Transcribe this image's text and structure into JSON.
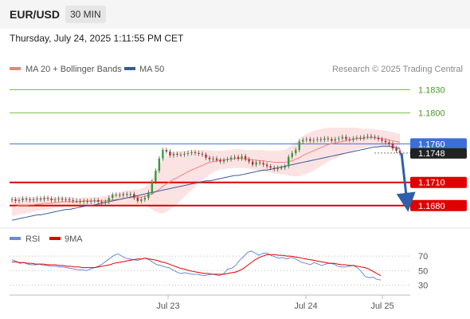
{
  "header": {
    "symbol": "EUR/USD",
    "timeframe": "30 MIN",
    "datetime": "Thursday, July 24, 2025 1:11:55 PM CET"
  },
  "legend": {
    "ma20_label": "MA 20 + Bollinger Bands",
    "ma50_label": "MA 50",
    "credit": "Research © 2025 Trading Central",
    "ma20_color": "#f08080",
    "ma50_color": "#3a5a9a"
  },
  "rsi_legend": {
    "rsi_label": "RSI",
    "ma_label": "9MA",
    "rsi_color": "#6a8ad8",
    "ma_color": "#e00000"
  },
  "chart_data": [
    {
      "type": "candlestick",
      "ylim": [
        1.1655,
        1.1845
      ],
      "x_ticks": [
        "Jul 23",
        "Jul 24",
        "Jul 25"
      ],
      "close": [
        1.1688,
        1.1686,
        1.1687,
        1.1689,
        1.1688,
        1.1687,
        1.1688,
        1.1689,
        1.1688,
        1.169,
        1.1689,
        1.1687,
        1.1688,
        1.1689,
        1.1688,
        1.1688,
        1.1687,
        1.1686,
        1.1686,
        1.1685,
        1.1686,
        1.1685,
        1.1686,
        1.1687,
        1.1685,
        1.1684,
        1.1685,
        1.169,
        1.1694,
        1.1694,
        1.1693,
        1.1695,
        1.1694,
        1.1695,
        1.169,
        1.1686,
        1.1688,
        1.169,
        1.1697,
        1.1711,
        1.1725,
        1.1741,
        1.1752,
        1.175,
        1.1745,
        1.1747,
        1.1746,
        1.1746,
        1.1747,
        1.1748,
        1.1749,
        1.1748,
        1.1747,
        1.1746,
        1.1742,
        1.174,
        1.1741,
        1.1739,
        1.1737,
        1.1739,
        1.174,
        1.1742,
        1.1743,
        1.1741,
        1.1744,
        1.174,
        1.1737,
        1.1733,
        1.1736,
        1.1735,
        1.1733,
        1.1731,
        1.1729,
        1.1727,
        1.1729,
        1.1729,
        1.1731,
        1.1743,
        1.1748,
        1.1752,
        1.1763,
        1.1765,
        1.1766,
        1.1764,
        1.1765,
        1.1766,
        1.1765,
        1.1767,
        1.1766,
        1.1764,
        1.1766,
        1.1767,
        1.1769,
        1.1766,
        1.1765,
        1.1767,
        1.1768,
        1.1767,
        1.1769,
        1.177,
        1.1769,
        1.1768,
        1.1766,
        1.1764,
        1.1762,
        1.176,
        1.1754,
        1.1751,
        1.1748
      ],
      "open": [
        1.1687,
        1.1688,
        1.1686,
        1.1687,
        1.1689,
        1.1688,
        1.1687,
        1.1688,
        1.1689,
        1.1688,
        1.169,
        1.1689,
        1.1687,
        1.1688,
        1.1689,
        1.1688,
        1.1688,
        1.1687,
        1.1686,
        1.1686,
        1.1685,
        1.1686,
        1.1685,
        1.1686,
        1.1687,
        1.1685,
        1.1684,
        1.1685,
        1.169,
        1.1694,
        1.1694,
        1.1693,
        1.1695,
        1.1694,
        1.1695,
        1.169,
        1.1686,
        1.1688,
        1.169,
        1.1697,
        1.1711,
        1.1725,
        1.1741,
        1.1752,
        1.175,
        1.1745,
        1.1747,
        1.1746,
        1.1746,
        1.1747,
        1.1748,
        1.1749,
        1.1748,
        1.1747,
        1.1746,
        1.1742,
        1.174,
        1.1741,
        1.1739,
        1.1737,
        1.1739,
        1.174,
        1.1742,
        1.1743,
        1.1741,
        1.1744,
        1.174,
        1.1737,
        1.1733,
        1.1736,
        1.1735,
        1.1733,
        1.1731,
        1.1729,
        1.1727,
        1.1729,
        1.1729,
        1.1731,
        1.1743,
        1.1748,
        1.1752,
        1.1763,
        1.1765,
        1.1766,
        1.1764,
        1.1765,
        1.1766,
        1.1765,
        1.1767,
        1.1766,
        1.1764,
        1.1766,
        1.1767,
        1.1769,
        1.1766,
        1.1765,
        1.1767,
        1.1768,
        1.1767,
        1.1769,
        1.177,
        1.1769,
        1.1768,
        1.1766,
        1.1764,
        1.1762,
        1.176,
        1.1754,
        1.1751
      ],
      "ma20": [
        1.1679,
        1.1679,
        1.168,
        1.168,
        1.168,
        1.1681,
        1.1681,
        1.1682,
        1.1682,
        1.1683,
        1.1683,
        1.1683,
        1.1684,
        1.1684,
        1.1685,
        1.1685,
        1.1685,
        1.1685,
        1.1685,
        1.1685,
        1.1686,
        1.1686,
        1.1686,
        1.1686,
        1.1686,
        1.1686,
        1.1686,
        1.1687,
        1.1687,
        1.1688,
        1.1688,
        1.1689,
        1.169,
        1.169,
        1.1691,
        1.1691,
        1.1691,
        1.1692,
        1.1693,
        1.1695,
        1.1698,
        1.1701,
        1.1705,
        1.1708,
        1.1711,
        1.1714,
        1.1716,
        1.1719,
        1.1721,
        1.1724,
        1.1726,
        1.1728,
        1.173,
        1.1732,
        1.1734,
        1.1736,
        1.1737,
        1.1738,
        1.1739,
        1.1739,
        1.174,
        1.174,
        1.1741,
        1.1741,
        1.1741,
        1.174,
        1.174,
        1.1739,
        1.1739,
        1.1738,
        1.1738,
        1.1737,
        1.1737,
        1.1736,
        1.1736,
        1.1736,
        1.1736,
        1.1737,
        1.1738,
        1.174,
        1.1742,
        1.1745,
        1.1747,
        1.1749,
        1.1751,
        1.1753,
        1.1755,
        1.1757,
        1.1759,
        1.176,
        1.1761,
        1.1762,
        1.1763,
        1.1764,
        1.1765,
        1.1766,
        1.1767,
        1.1767,
        1.1767,
        1.1768,
        1.1768,
        1.1768,
        1.1767,
        1.1767,
        1.1766,
        1.1765,
        1.1764,
        1.1763,
        1.1762
      ],
      "band_width": [
        0.0012,
        0.0012,
        0.0011,
        0.0011,
        0.001,
        0.001,
        0.0009,
        0.0009,
        0.0008,
        0.0008,
        0.0008,
        0.0007,
        0.0007,
        0.0007,
        0.0006,
        0.0006,
        0.0006,
        0.0006,
        0.0005,
        0.0005,
        0.0005,
        0.0005,
        0.0005,
        0.0005,
        0.0005,
        0.0006,
        0.0006,
        0.0007,
        0.0008,
        0.0008,
        0.0009,
        0.0009,
        0.001,
        0.001,
        0.001,
        0.001,
        0.0011,
        0.0012,
        0.0015,
        0.002,
        0.0026,
        0.0031,
        0.0035,
        0.0036,
        0.0036,
        0.0035,
        0.0034,
        0.0032,
        0.003,
        0.0028,
        0.0026,
        0.0024,
        0.0022,
        0.002,
        0.0018,
        0.0016,
        0.0014,
        0.0013,
        0.0012,
        0.0012,
        0.0012,
        0.0012,
        0.0012,
        0.0012,
        0.0012,
        0.0012,
        0.0012,
        0.0013,
        0.0013,
        0.0014,
        0.0014,
        0.0014,
        0.0014,
        0.0015,
        0.0015,
        0.0016,
        0.0016,
        0.0018,
        0.002,
        0.0022,
        0.0024,
        0.0025,
        0.0026,
        0.0026,
        0.0026,
        0.0025,
        0.0024,
        0.0023,
        0.0022,
        0.0021,
        0.002,
        0.0019,
        0.0018,
        0.0017,
        0.0016,
        0.0015,
        0.0014,
        0.0013,
        0.0012,
        0.0012,
        0.0011,
        0.0011,
        0.0011,
        0.0011,
        0.0011,
        0.0011,
        0.0011,
        0.0011,
        0.0011,
        0.0011,
        0.0011
      ],
      "ma50": [
        1.1661,
        1.1662,
        1.1663,
        1.1664,
        1.1665,
        1.1666,
        1.1667,
        1.1668,
        1.1668,
        1.1669,
        1.167,
        1.1671,
        1.1672,
        1.1673,
        1.1674,
        1.1675,
        1.1675,
        1.1676,
        1.1677,
        1.1678,
        1.1679,
        1.168,
        1.168,
        1.1681,
        1.1682,
        1.1683,
        1.1684,
        1.1685,
        1.1686,
        1.1687,
        1.1688,
        1.1689,
        1.169,
        1.1691,
        1.1692,
        1.1693,
        1.1694,
        1.1695,
        1.1696,
        1.1697,
        1.1698,
        1.1699,
        1.17,
        1.1701,
        1.1702,
        1.1703,
        1.1704,
        1.1705,
        1.1706,
        1.1707,
        1.1708,
        1.1709,
        1.171,
        1.1711,
        1.1712,
        1.1712,
        1.1713,
        1.1714,
        1.1715,
        1.1716,
        1.1717,
        1.1718,
        1.1719,
        1.1719,
        1.172,
        1.1721,
        1.1722,
        1.1723,
        1.1724,
        1.1725,
        1.1726,
        1.1726,
        1.1727,
        1.1728,
        1.1729,
        1.173,
        1.1731,
        1.1732,
        1.1733,
        1.1734,
        1.1735,
        1.1736,
        1.1737,
        1.1738,
        1.1739,
        1.174,
        1.1741,
        1.1742,
        1.1743,
        1.1744,
        1.1745,
        1.1746,
        1.1747,
        1.1748,
        1.1749,
        1.175,
        1.1751,
        1.1752,
        1.1753,
        1.1754,
        1.1755,
        1.1756,
        1.1756,
        1.1757,
        1.1757,
        1.1757,
        1.1756,
        1.1755,
        1.1754
      ],
      "horizontal_levels": [
        {
          "value": 1.183,
          "label": "1.1830",
          "kind": "target"
        },
        {
          "value": 1.18,
          "label": "1.1800",
          "kind": "target"
        },
        {
          "value": 1.176,
          "label": "1.1760",
          "kind": "pivot"
        },
        {
          "value": 1.1748,
          "label": "1.1748",
          "kind": "last"
        },
        {
          "value": 1.171,
          "label": "1.1710",
          "kind": "support"
        },
        {
          "value": 1.168,
          "label": "1.1680",
          "kind": "support"
        }
      ],
      "arrow": {
        "from": 1.1748,
        "to": 1.168,
        "direction": "down"
      }
    },
    {
      "type": "line",
      "title": "RSI",
      "ylim": [
        25,
        80
      ],
      "y_ticks": [
        70,
        50,
        30
      ],
      "rsi": [
        65,
        63,
        60,
        61,
        59,
        58,
        58,
        59,
        57,
        57,
        56,
        56,
        55,
        55,
        54,
        53,
        52,
        51,
        51,
        50,
        52,
        54,
        56,
        59,
        63,
        67,
        71,
        73,
        70,
        67,
        66,
        65,
        64,
        66,
        67,
        65,
        61,
        58,
        57,
        55,
        54,
        51,
        48,
        46,
        47,
        46,
        45,
        45,
        44,
        43,
        44,
        45,
        44,
        43,
        46,
        52,
        53,
        57,
        64,
        69,
        75,
        77,
        74,
        71,
        74,
        74,
        71,
        69,
        67,
        68,
        66,
        68,
        67,
        64,
        61,
        60,
        58,
        61,
        59,
        57,
        59,
        60,
        59,
        56,
        55,
        55,
        56,
        57,
        54,
        49,
        42,
        40,
        41,
        38,
        37
      ],
      "ma9": [
        62,
        62,
        61,
        61,
        60,
        60,
        59,
        59,
        59,
        58,
        58,
        58,
        57,
        57,
        56,
        56,
        55,
        55,
        54,
        54,
        54,
        54,
        55,
        56,
        57,
        58,
        60,
        61,
        62,
        63,
        64,
        65,
        66,
        66,
        67,
        66,
        65,
        64,
        62,
        61,
        59,
        57,
        55,
        53,
        52,
        50,
        49,
        48,
        47,
        46,
        46,
        45,
        45,
        45,
        45,
        46,
        47,
        48,
        50,
        53,
        57,
        61,
        65,
        68,
        70,
        72,
        72,
        72,
        71,
        71,
        70,
        70,
        69,
        68,
        67,
        66,
        65,
        64,
        63,
        62,
        61,
        60,
        60,
        59,
        58,
        58,
        57,
        57,
        56,
        55,
        54,
        52,
        49,
        46,
        43
      ]
    }
  ]
}
